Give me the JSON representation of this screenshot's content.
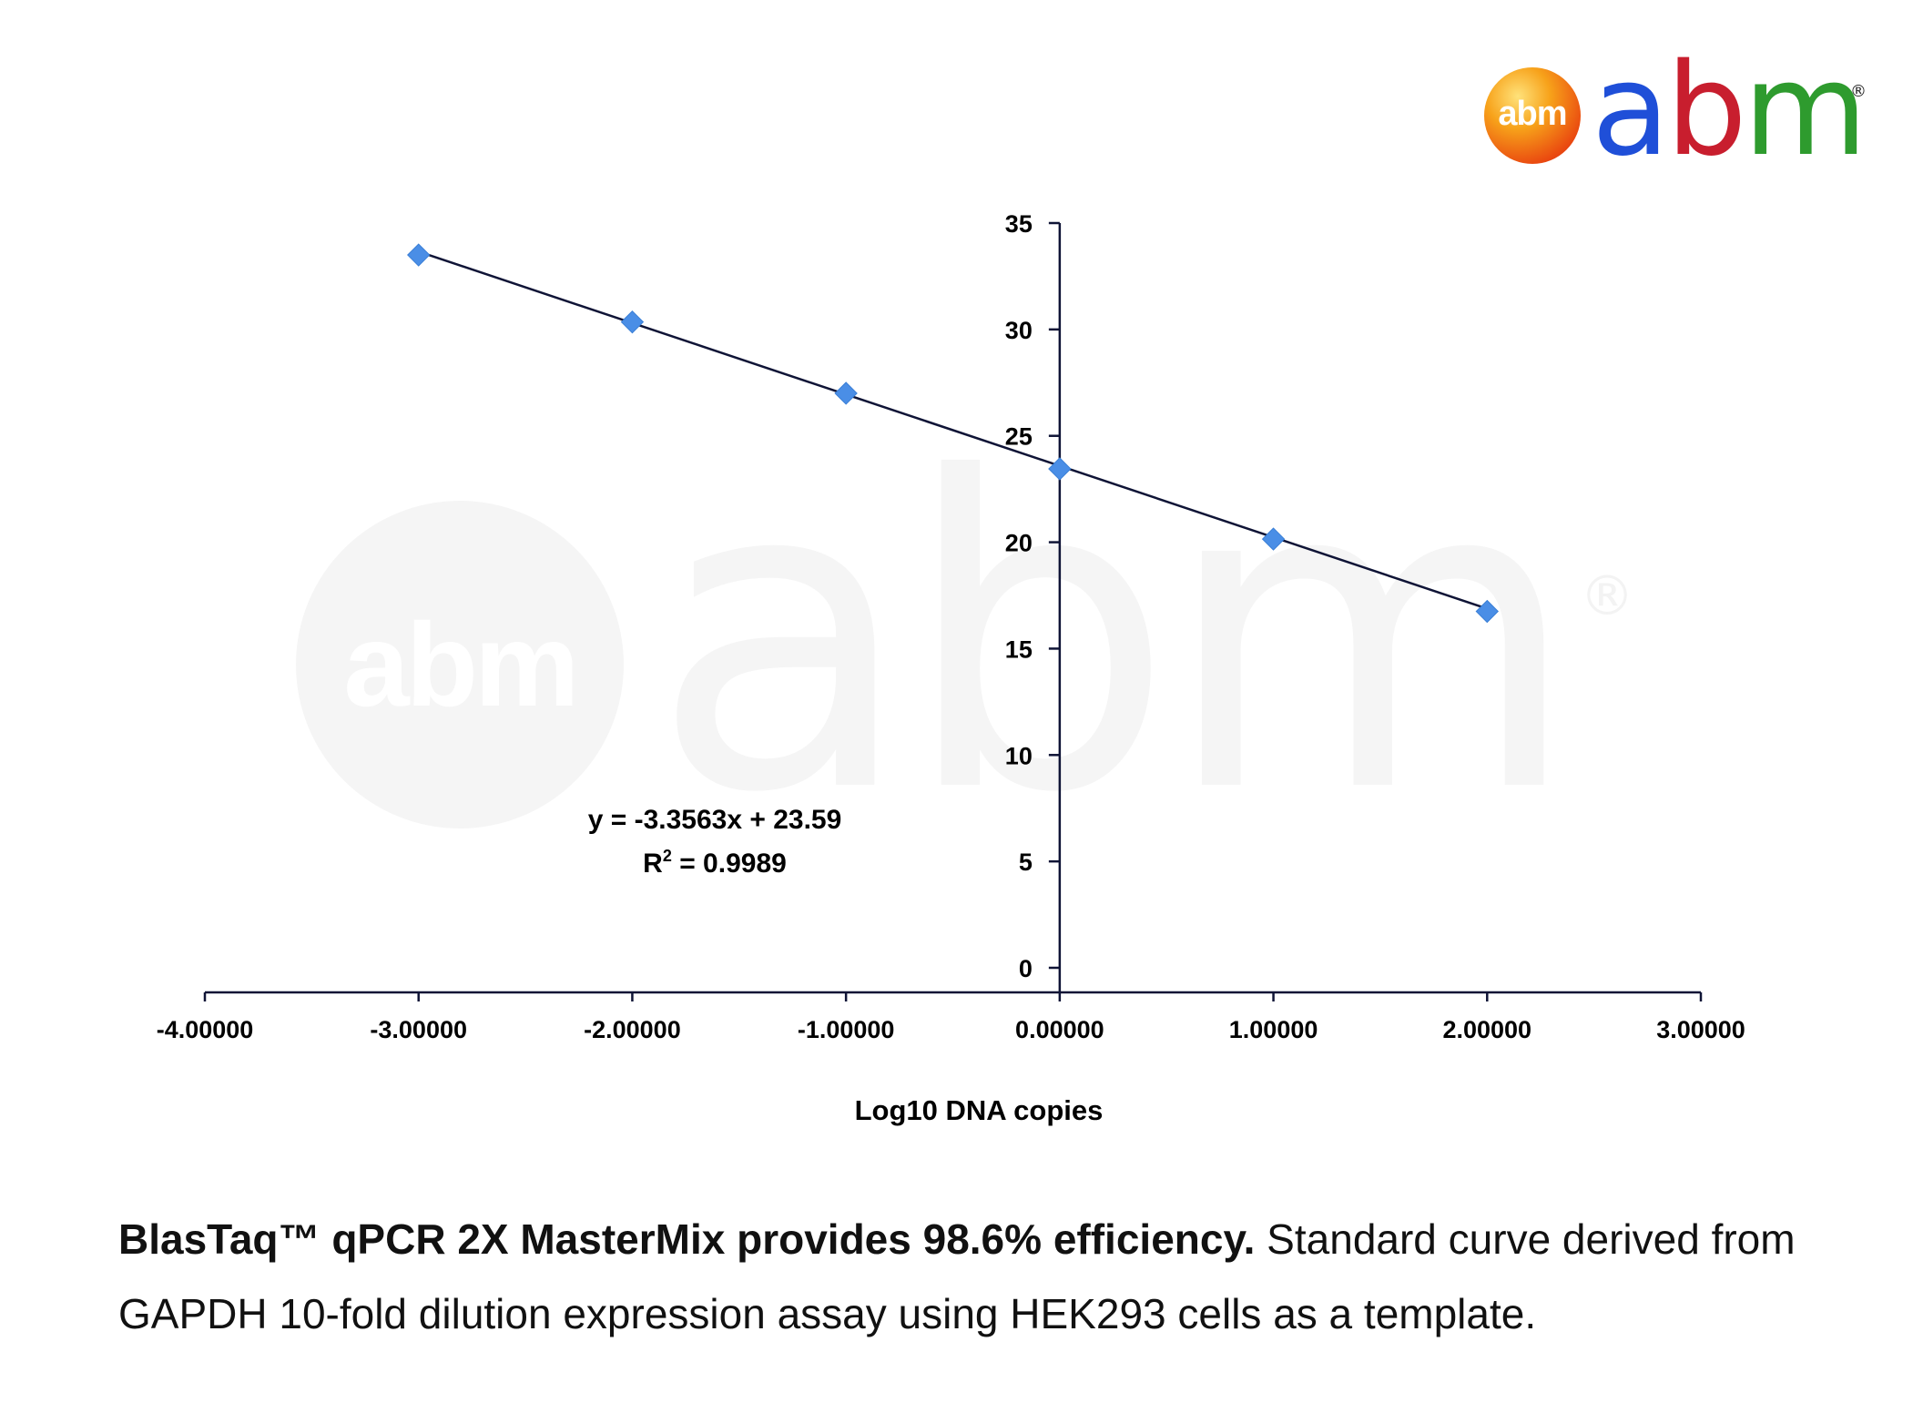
{
  "logo": {
    "ball_text": "abm",
    "word_a": "a",
    "word_b": "b",
    "word_m": "m",
    "reg_mark": "®",
    "colors": {
      "a": "#1f4fd8",
      "b": "#c81e2e",
      "m": "#2e9b2e"
    }
  },
  "watermark": {
    "ball_text": "abm",
    "word": "abm",
    "reg_mark": "®"
  },
  "chart_data": {
    "type": "scatter",
    "title": "",
    "xlabel": "Log10 DNA copies",
    "ylabel": "",
    "xlim": [
      -4,
      3
    ],
    "ylim": [
      0,
      35
    ],
    "x_ticks": [
      -4,
      -3,
      -2,
      -1,
      0,
      1,
      2,
      3
    ],
    "x_tick_labels": [
      "-4.00000",
      "-3.00000",
      "-2.00000",
      "-1.00000",
      "0.00000",
      "1.00000",
      "2.00000",
      "3.00000"
    ],
    "y_ticks": [
      0,
      5,
      10,
      15,
      20,
      25,
      30,
      35
    ],
    "y_tick_labels": [
      "0",
      "5",
      "10",
      "15",
      "20",
      "25",
      "30",
      "35"
    ],
    "grid": false,
    "legend": "none",
    "series": [
      {
        "marker": "diamond",
        "color": "#4a8ee6",
        "points": [
          {
            "x": -3,
            "y": 33.5
          },
          {
            "x": -2,
            "y": 30.35
          },
          {
            "x": -1,
            "y": 27.0
          },
          {
            "x": 0,
            "y": 23.45
          },
          {
            "x": 1,
            "y": 20.15
          },
          {
            "x": 2,
            "y": 16.75
          }
        ]
      }
    ],
    "trendline": {
      "type": "linear",
      "slope": -3.3563,
      "intercept": 23.59,
      "x_range": [
        -3,
        2
      ],
      "color": "#0f1436",
      "equation_label": "y = -3.3563x + 23.59",
      "r2_prefix": "R",
      "r2_superscript": "2",
      "r2_value": " = 0.9989"
    }
  },
  "caption": {
    "bold": "BlasTaq™ qPCR 2X MasterMix  provides 98.6% efficiency.",
    "normal": " Standard curve derived from GAPDH 10-fold dilution expression assay using HEK293 cells as a template."
  }
}
